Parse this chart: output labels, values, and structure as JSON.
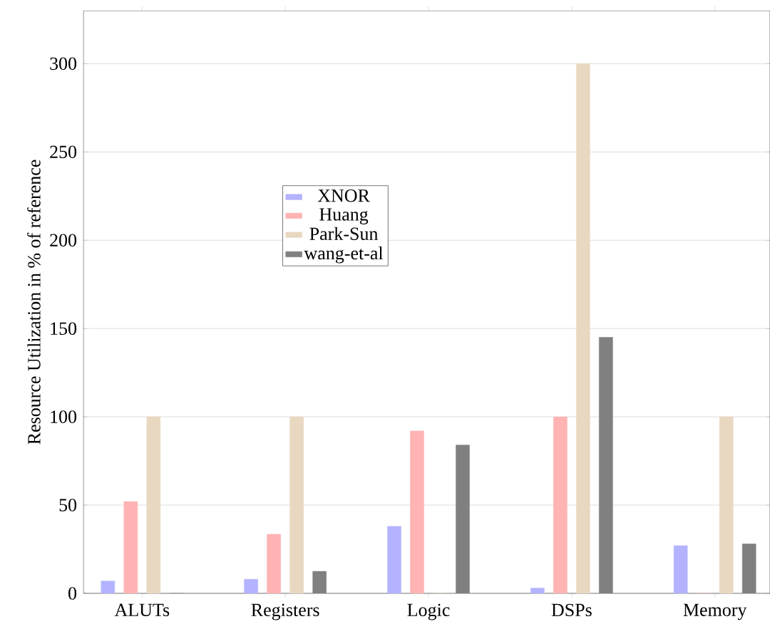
{
  "chart_data": {
    "type": "bar",
    "ylabel": "Resource Utilization in % of reference",
    "categories": [
      "ALUTs",
      "Registers",
      "Logic",
      "DSPs",
      "Memory"
    ],
    "series": [
      {
        "name": "XNOR",
        "color": "#b3b3ff",
        "values": [
          7,
          8,
          38,
          3,
          27
        ]
      },
      {
        "name": "Huang",
        "color": "#ffb3b3",
        "values": [
          52,
          33.5,
          92,
          100,
          0
        ]
      },
      {
        "name": "Park-Sun",
        "color": "#e9d8c1",
        "values": [
          100,
          100,
          0,
          300,
          100
        ]
      },
      {
        "name": "wang-et-al",
        "color": "#808080",
        "values": [
          0,
          12.5,
          84,
          145,
          28
        ]
      }
    ],
    "ylim": [
      0,
      330
    ],
    "yticks": [
      0,
      50,
      100,
      150,
      200,
      250,
      300
    ],
    "grid": "y",
    "legend": "center left"
  }
}
